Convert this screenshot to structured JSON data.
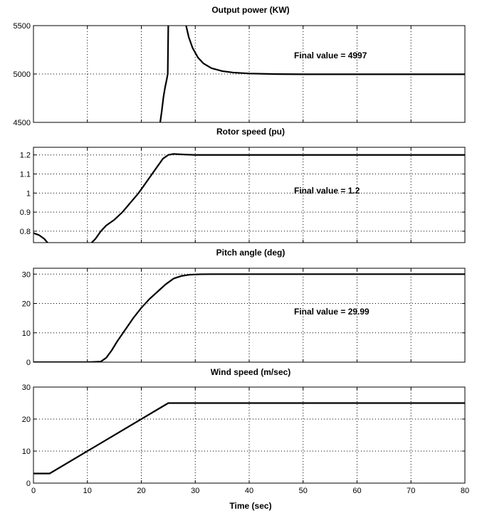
{
  "chart_data": [
    {
      "type": "line",
      "title": "Output power (KW)",
      "xlabel": "",
      "ylabel": "",
      "xlim": [
        0,
        80
      ],
      "ylim": [
        4500,
        5500
      ],
      "xticks": [
        0,
        10,
        20,
        30,
        40,
        50,
        60,
        70,
        80
      ],
      "yticks": [
        4500,
        5000,
        5500
      ],
      "yticklabels": [
        "4500",
        "5000",
        "5500"
      ],
      "grid": true,
      "annotation": "Final value = 4997",
      "series": [
        {
          "x": [
            23.5,
            23.8,
            24.1,
            24.4,
            24.7,
            24.9,
            25.0
          ],
          "y": [
            4500,
            4620,
            4760,
            4860,
            4940,
            5000,
            5500
          ]
        },
        {
          "x": [
            28.3,
            28.8,
            29.5,
            30.5,
            31.5,
            33,
            35,
            37,
            40,
            45,
            50,
            60,
            70,
            80
          ],
          "y": [
            5500,
            5380,
            5270,
            5170,
            5110,
            5060,
            5030,
            5015,
            5005,
            4999,
            4997,
            4997,
            4997,
            4997
          ]
        }
      ]
    },
    {
      "type": "line",
      "title": "Rotor speed (pu)",
      "xlabel": "",
      "ylabel": "",
      "xlim": [
        0,
        80
      ],
      "ylim": [
        0.74,
        1.24
      ],
      "xticks": [
        0,
        10,
        20,
        30,
        40,
        50,
        60,
        70,
        80
      ],
      "yticks": [
        0.8,
        0.9,
        1.0,
        1.1,
        1.2
      ],
      "yticklabels": [
        "0.8",
        "0.9",
        "1",
        "1.1",
        "1.2"
      ],
      "grid": true,
      "annotation": "Final value = 1.2",
      "series": [
        {
          "x": [
            0,
            1,
            2,
            2.6
          ],
          "y": [
            0.79,
            0.78,
            0.76,
            0.74
          ]
        },
        {
          "x": [
            10.8,
            11.5,
            12.5,
            13.5,
            15,
            16.5,
            18,
            19.5,
            21,
            22.5,
            24,
            25,
            26,
            28,
            30,
            40,
            50,
            60,
            70,
            80
          ],
          "y": [
            0.74,
            0.76,
            0.8,
            0.83,
            0.86,
            0.9,
            0.95,
            1.0,
            1.06,
            1.12,
            1.18,
            1.2,
            1.205,
            1.202,
            1.2,
            1.2,
            1.2,
            1.2,
            1.2,
            1.2
          ]
        }
      ]
    },
    {
      "type": "line",
      "title": "Pitch angle (deg)",
      "xlabel": "",
      "ylabel": "",
      "xlim": [
        0,
        80
      ],
      "ylim": [
        0,
        32
      ],
      "xticks": [
        0,
        10,
        20,
        30,
        40,
        50,
        60,
        70,
        80
      ],
      "yticks": [
        0,
        10,
        20,
        30
      ],
      "yticklabels": [
        "0",
        "10",
        "20",
        "30"
      ],
      "grid": true,
      "annotation": "Final value =  29.99",
      "series": [
        {
          "x": [
            0,
            10,
            12.5,
            13.5,
            14.5,
            15.5,
            17,
            18.5,
            20,
            21.5,
            23,
            24.5,
            26,
            27.5,
            29,
            31,
            33,
            40,
            50,
            60,
            70,
            80
          ],
          "y": [
            0,
            0,
            0.2,
            1.5,
            4,
            7,
            11,
            15,
            18.5,
            21.5,
            24,
            26.5,
            28.5,
            29.4,
            29.8,
            29.95,
            29.99,
            29.99,
            29.99,
            29.99,
            29.99,
            29.99
          ]
        }
      ]
    },
    {
      "type": "line",
      "title": "Wind speed (m/sec)",
      "xlabel": "Time (sec)",
      "ylabel": "",
      "xlim": [
        0,
        80
      ],
      "ylim": [
        0,
        30
      ],
      "xticks": [
        0,
        10,
        20,
        30,
        40,
        50,
        60,
        70,
        80
      ],
      "xticklabels": [
        "0",
        "10",
        "20",
        "30",
        "40",
        "50",
        "60",
        "70",
        "80"
      ],
      "yticks": [
        0,
        10,
        20,
        30
      ],
      "yticklabels": [
        "0",
        "10",
        "20",
        "30"
      ],
      "grid": true,
      "annotation": "",
      "series": [
        {
          "x": [
            0,
            3,
            25,
            80
          ],
          "y": [
            3,
            3,
            25,
            25
          ]
        }
      ]
    }
  ]
}
